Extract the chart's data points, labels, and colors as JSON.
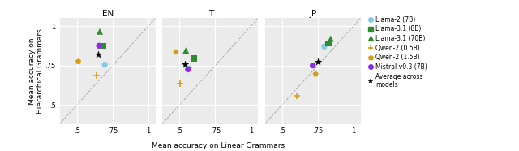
{
  "subplots": [
    "EN",
    "IT",
    "JP"
  ],
  "xlabel": "Mean accuracy on Linear Grammars",
  "ylabel": "Mean accuracy on\nHierarchical Grammars",
  "xlim": [
    0.38,
    1.05
  ],
  "ylim": [
    0.38,
    1.05
  ],
  "xticks": [
    0.5,
    0.75,
    1.0
  ],
  "yticks": [
    0.5,
    0.75,
    1.0
  ],
  "xticklabels": [
    ".5",
    ".75",
    "1"
  ],
  "yticklabels": [
    ".5",
    ".75",
    "1"
  ],
  "models": {
    "llama2_7b": {
      "label": "Llama-2 (7B)",
      "color": "#85C8E8",
      "marker": "o",
      "size": 28
    },
    "llama31_8b": {
      "label": "Llama-3.1 (8B)",
      "color": "#2e8b2e",
      "marker": "s",
      "size": 28
    },
    "llama31_70b": {
      "label": "Llama-3.1 (70B)",
      "color": "#2e8b2e",
      "marker": "^",
      "size": 32
    },
    "qwen2_05b": {
      "label": "Qwen-2 (0.5B)",
      "color": "#D4A017",
      "marker": "+",
      "size": 40
    },
    "qwen2_15b": {
      "label": "Qwen-2 (1.5B)",
      "color": "#D4A017",
      "marker": "p",
      "size": 30
    },
    "mistral_7b": {
      "label": "Mistral-v0.3 (7B)",
      "color": "#8B2BE2",
      "marker": "o",
      "size": 28
    },
    "avg": {
      "label": "Average across\nmodels",
      "color": "black",
      "marker": "*",
      "size": 40
    }
  },
  "data": {
    "EN": {
      "llama2_7b": [
        0.695,
        0.755
      ],
      "llama31_8b": [
        0.685,
        0.875
      ],
      "llama31_70b": [
        0.66,
        0.965
      ],
      "qwen2_05b": [
        0.635,
        0.685
      ],
      "qwen2_15b": [
        0.51,
        0.775
      ],
      "mistral_7b": [
        0.655,
        0.875
      ],
      "avg": [
        0.65,
        0.82
      ]
    },
    "IT": {
      "llama2_7b": [
        0.565,
        0.73
      ],
      "llama31_8b": [
        0.6,
        0.795
      ],
      "llama31_70b": [
        0.545,
        0.845
      ],
      "qwen2_05b": [
        0.505,
        0.635
      ],
      "qwen2_15b": [
        0.475,
        0.835
      ],
      "mistral_7b": [
        0.56,
        0.725
      ],
      "avg": [
        0.54,
        0.76
      ]
    },
    "JP": {
      "llama2_7b": [
        0.795,
        0.87
      ],
      "llama31_8b": [
        0.825,
        0.89
      ],
      "llama31_70b": [
        0.84,
        0.92
      ],
      "qwen2_05b": [
        0.605,
        0.56
      ],
      "qwen2_15b": [
        0.735,
        0.695
      ],
      "mistral_7b": [
        0.715,
        0.75
      ],
      "avg": [
        0.75,
        0.775
      ]
    }
  },
  "background_color": "#EBEBEB",
  "figure_bg": "#ffffff",
  "legend_fontsize": 5.5,
  "tick_fontsize": 6.0,
  "label_fontsize": 6.5,
  "title_fontsize": 7.5
}
